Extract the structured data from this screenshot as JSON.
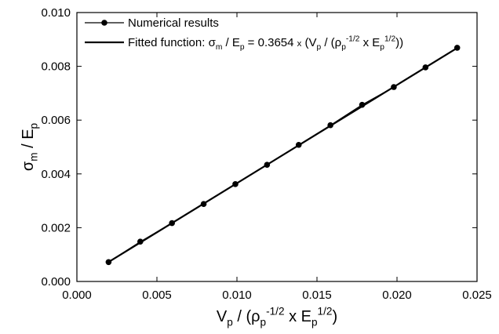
{
  "chart_data": {
    "type": "line",
    "title": "",
    "xlabel": {
      "parts": [
        {
          "text": "V",
          "style": "normal"
        },
        {
          "text": "p",
          "style": "sub"
        },
        {
          "text": " / (",
          "style": "normal"
        },
        {
          "text": "ρ",
          "style": "normal"
        },
        {
          "text": "p",
          "style": "sub"
        },
        {
          "text": "-1/2",
          "style": "sup"
        },
        {
          "text": " x E",
          "style": "normal"
        },
        {
          "text": "p",
          "style": "sub"
        },
        {
          "text": "1/2",
          "style": "sup"
        },
        {
          "text": ")",
          "style": "normal"
        }
      ]
    },
    "ylabel": {
      "parts": [
        {
          "text": "σ",
          "style": "normal"
        },
        {
          "text": "m",
          "style": "sub"
        },
        {
          "text": " / E",
          "style": "normal"
        },
        {
          "text": "p",
          "style": "sub"
        }
      ]
    },
    "xlim": [
      0.0,
      0.025
    ],
    "ylim": [
      0.0,
      0.01
    ],
    "xticks": [
      "0.000",
      "0.005",
      "0.010",
      "0.015",
      "0.020",
      "0.025"
    ],
    "yticks": [
      "0.000",
      "0.002",
      "0.004",
      "0.006",
      "0.008",
      "0.010"
    ],
    "grid": false,
    "legend_position": "top-left",
    "series": [
      {
        "name": "Numerical results",
        "marker": "circle",
        "line": true,
        "color": "#000000",
        "x": [
          0.00198,
          0.00396,
          0.00594,
          0.00792,
          0.0099,
          0.01188,
          0.01386,
          0.01584,
          0.01782,
          0.0198,
          0.02178,
          0.02376
        ],
        "y": [
          0.00072,
          0.00148,
          0.00217,
          0.00288,
          0.00362,
          0.00434,
          0.00508,
          0.00581,
          0.00657,
          0.00723,
          0.00796,
          0.00869
        ]
      },
      {
        "name": "Fitted function",
        "label_parts": [
          {
            "text": "Fitted function: ",
            "style": "normal"
          },
          {
            "text": "σ",
            "style": "normal"
          },
          {
            "text": "m",
            "style": "sub"
          },
          {
            "text": " / E",
            "style": "normal"
          },
          {
            "text": "p",
            "style": "sub"
          },
          {
            "text": " = 0.3654 ",
            "style": "normal"
          },
          {
            "text": "x",
            "style": "small"
          },
          {
            "text": " (V",
            "style": "normal"
          },
          {
            "text": "p",
            "style": "sub"
          },
          {
            "text": " / (",
            "style": "normal"
          },
          {
            "text": "ρ",
            "style": "normal"
          },
          {
            "text": "p",
            "style": "sub"
          },
          {
            "text": "-1/2",
            "style": "sup"
          },
          {
            "text": " x E",
            "style": "normal"
          },
          {
            "text": "p",
            "style": "sub"
          },
          {
            "text": "1/2",
            "style": "sup"
          },
          {
            "text": "))",
            "style": "normal"
          }
        ],
        "marker": "none",
        "line": true,
        "color": "#000000",
        "x": [
          0.00198,
          0.02376
        ],
        "y": [
          0.000724,
          0.008682
        ]
      }
    ]
  }
}
